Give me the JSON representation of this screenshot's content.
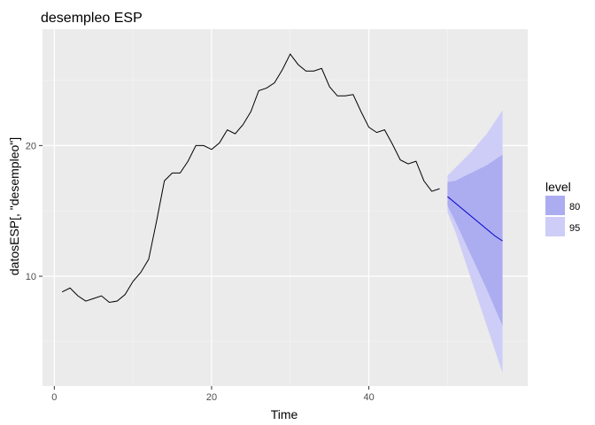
{
  "chart_data": {
    "type": "line",
    "title": "desempleo ESP",
    "xlabel": "Time",
    "ylabel": "datosESP[, \"desempleo\"]",
    "xlim": [
      -1.5,
      60.2
    ],
    "ylim": [
      1.6,
      28.9
    ],
    "x_ticks": [
      0,
      20,
      40
    ],
    "y_ticks": [
      10,
      20
    ],
    "x_minor": [
      10,
      30,
      50
    ],
    "y_minor": [
      5,
      15,
      25
    ],
    "grid": true,
    "legend_placement": "right",
    "legend": {
      "title": "level",
      "entries": [
        {
          "label": "80",
          "color": "#acacf0"
        },
        {
          "label": "95",
          "color": "#cdcdf7"
        }
      ]
    },
    "colors": {
      "panel": "#ebebeb",
      "grid_major": "#ffffff",
      "observed_line": "#000000",
      "forecast_line": "#0000cc",
      "band_80": "#acacf0",
      "band_95": "#cdcdf7"
    },
    "series": [
      {
        "x": [
          1,
          2,
          3,
          4,
          5,
          6,
          7,
          8,
          9,
          10,
          11,
          12,
          13,
          14,
          15,
          16,
          17,
          18,
          19,
          20,
          21,
          22,
          23,
          24,
          25,
          26,
          27,
          28,
          29,
          30,
          31,
          32,
          33,
          34,
          35,
          36,
          37,
          38,
          39,
          40,
          41,
          42,
          43,
          44,
          45,
          46,
          47,
          48,
          49
        ],
        "values": [
          8.8,
          9.1,
          8.5,
          8.1,
          8.3,
          8.5,
          8.0,
          8.1,
          8.6,
          9.6,
          10.3,
          11.3,
          14.2,
          17.3,
          17.9,
          17.9,
          18.8,
          20.0,
          20.0,
          19.7,
          20.2,
          21.2,
          20.9,
          21.6,
          22.6,
          24.2,
          24.4,
          24.8,
          25.8,
          27.0,
          26.2,
          25.7,
          25.7,
          25.9,
          24.5,
          23.8,
          23.8,
          23.9,
          22.6,
          21.4,
          21.0,
          21.2,
          20.1,
          18.9,
          18.6,
          18.8,
          17.3,
          16.5,
          16.7
        ]
      }
    ],
    "forecast": {
      "x": [
        50,
        51,
        52,
        53,
        54,
        55,
        56,
        57
      ],
      "mean": [
        16.1,
        15.6,
        15.1,
        14.6,
        14.1,
        13.6,
        13.1,
        12.7
      ],
      "lo80": [
        15.4,
        14.2,
        12.9,
        11.6,
        10.3,
        9.0,
        7.6,
        6.2
      ],
      "hi80": [
        17.2,
        17.3,
        17.6,
        17.9,
        18.2,
        18.5,
        18.9,
        19.3
      ],
      "lo95": [
        14.9,
        13.4,
        11.6,
        9.8,
        8.0,
        6.2,
        4.4,
        2.6
      ],
      "hi95": [
        17.7,
        18.3,
        18.9,
        19.5,
        20.2,
        20.9,
        21.8,
        22.7
      ]
    }
  }
}
